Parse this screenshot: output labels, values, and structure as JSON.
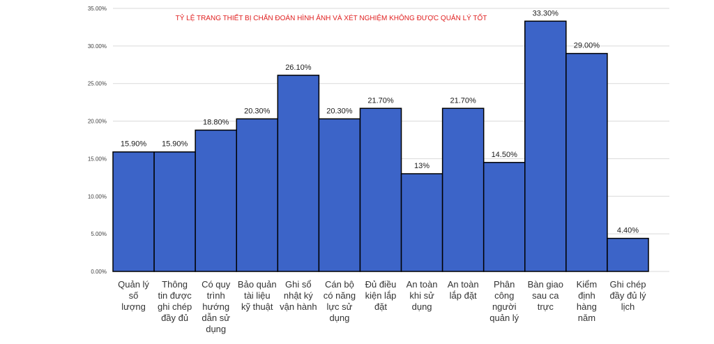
{
  "chart_data": {
    "type": "bar",
    "title": "TỶ LỆ TRANG THIẾT BỊ CHẨN ĐOÁN HÌNH ẢNH VÀ XÉT NGHIỆM KHÔNG ĐƯỢC QUẢN LÝ TỐT",
    "xlabel": "",
    "ylabel": "",
    "ylim": [
      0,
      35
    ],
    "y_ticks": [
      "0.00%",
      "5.00%",
      "10.00%",
      "15.00%",
      "20.00%",
      "25.00%",
      "30.00%",
      "35.00%"
    ],
    "grid": true,
    "categories": [
      [
        "Quản lý",
        "số",
        "lượng"
      ],
      [
        "Thông",
        "tin được",
        "ghi chép",
        "đầy đủ"
      ],
      [
        "Có quy",
        "trình",
        "hướng",
        "dẫn sử",
        "dụng"
      ],
      [
        "Bảo quản",
        "tài liệu",
        "kỹ thuật"
      ],
      [
        "Ghi sổ",
        "nhật ký",
        "vận hành"
      ],
      [
        "Cán bộ",
        "có năng",
        "lực sử",
        "dụng"
      ],
      [
        "Đủ điều",
        "kiện lắp",
        "đặt"
      ],
      [
        "An toàn",
        "khi sử",
        "dụng"
      ],
      [
        "An toàn",
        "lắp đặt"
      ],
      [
        "Phân",
        "công",
        "người",
        "quản lý"
      ],
      [
        "Bàn giao",
        "sau ca",
        "trực"
      ],
      [
        "Kiểm",
        "định",
        "hàng",
        "năm"
      ],
      [
        "Ghi chép",
        "đầy đủ lý",
        "lịch"
      ]
    ],
    "values": [
      15.9,
      15.9,
      18.8,
      20.3,
      26.1,
      20.3,
      21.7,
      13,
      21.7,
      14.5,
      33.3,
      29.0,
      4.4
    ],
    "data_labels": [
      "15.90%",
      "15.90%",
      "18.80%",
      "20.30%",
      "26.10%",
      "20.30%",
      "21.70%",
      "13%",
      "21.70%",
      "14.50%",
      "33.30%",
      "29.00%",
      "4.40%"
    ],
    "colors": {
      "bar": "#3c64c8",
      "bar_border": "#000000",
      "title": "#e02020",
      "grid": "#d9d9d9"
    }
  }
}
